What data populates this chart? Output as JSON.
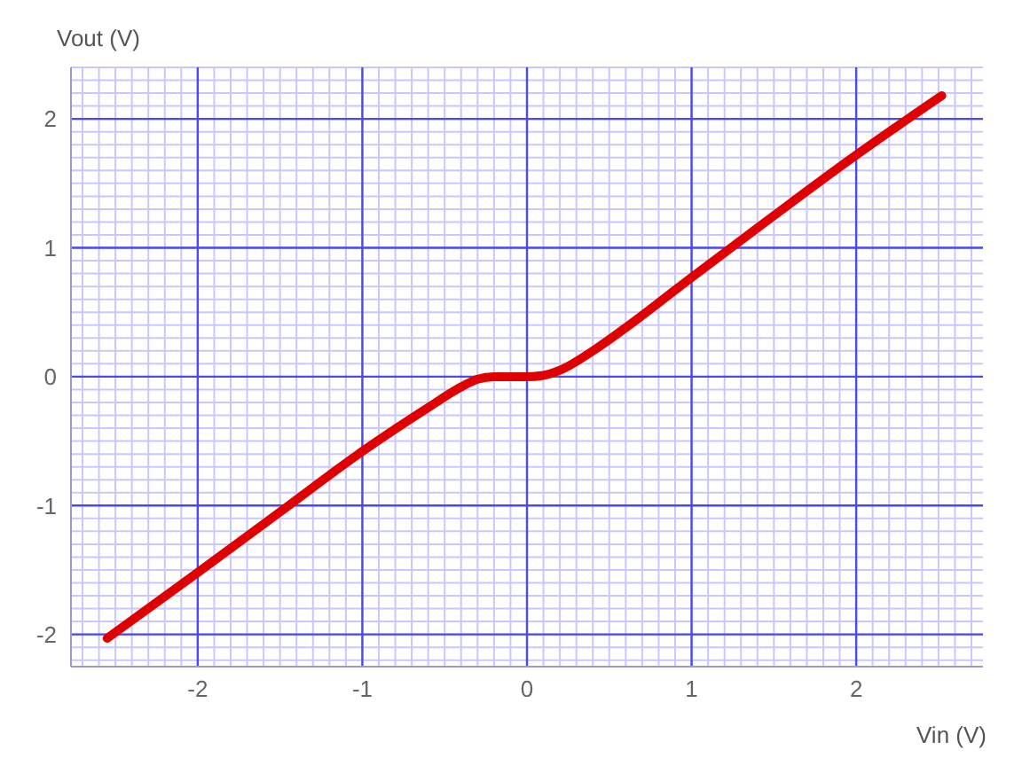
{
  "chart_data": {
    "type": "line",
    "xlabel": "Vin (V)",
    "ylabel": "Vout (V)",
    "x": [
      -2.55,
      -2,
      -1.5,
      -1,
      -0.6,
      -0.4,
      -0.3,
      -0.2,
      0,
      0.1,
      0.2,
      0.4,
      0.6,
      1,
      1.5,
      2,
      2.52
    ],
    "series": [
      {
        "color": "#e00000",
        "values": [
          -2.03,
          -1.52,
          -1.05,
          -0.58,
          -0.24,
          -0.08,
          -0.02,
          0,
          0,
          0.01,
          0.05,
          0.2,
          0.38,
          0.77,
          1.25,
          1.72,
          2.18
        ]
      }
    ],
    "xlim": [
      -2.77,
      2.77
    ],
    "ylim": [
      -2.25,
      2.4
    ],
    "xticks": [
      -2,
      -1,
      0,
      1,
      2
    ],
    "yticks": [
      -2,
      -1,
      0,
      1,
      2
    ],
    "grid": true,
    "marker": "none",
    "line_style": "solid"
  }
}
